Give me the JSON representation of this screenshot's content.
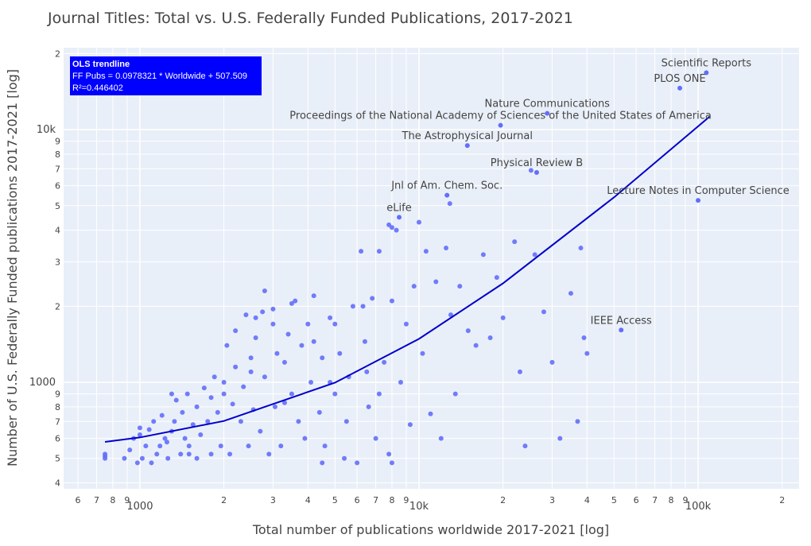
{
  "chart_data": {
    "type": "scatter",
    "title": "Journal Titles: Total vs. U.S. Federally Funded Publications, 2017-2021",
    "x_label": "Total number of publications worldwide 2017-2021 [log]",
    "y_label": "Number of U.S. Federally Funded publications 2017-2021 [log]",
    "log_x": true,
    "log_y": true,
    "grid": true,
    "color": "#636efa",
    "xlim": [
      533,
      230000
    ],
    "ylim": [
      379,
      21100
    ],
    "xticks": [
      {
        "value": 600,
        "label": "6"
      },
      {
        "value": 700,
        "label": "7"
      },
      {
        "value": 800,
        "label": "8"
      },
      {
        "value": 900,
        "label": "9"
      },
      1000,
      {
        "value": 2000,
        "label": "2"
      },
      {
        "value": 3000,
        "label": "3"
      },
      {
        "value": 4000,
        "label": "4"
      },
      {
        "value": 5000,
        "label": "5"
      },
      {
        "value": 6000,
        "label": "6"
      },
      {
        "value": 7000,
        "label": "7"
      },
      {
        "value": 8000,
        "label": "8"
      },
      {
        "value": 9000,
        "label": "9"
      },
      {
        "value": 10000,
        "label": "10k"
      },
      {
        "value": 20000,
        "label": "2"
      },
      {
        "value": 30000,
        "label": "3"
      },
      {
        "value": 40000,
        "label": "4"
      },
      {
        "value": 50000,
        "label": "5"
      },
      {
        "value": 60000,
        "label": "6"
      },
      {
        "value": 70000,
        "label": "7"
      },
      {
        "value": 80000,
        "label": "8"
      },
      {
        "value": 90000,
        "label": "9"
      },
      {
        "value": 100000,
        "label": "100k"
      },
      {
        "value": 200000,
        "label": "2"
      }
    ],
    "yticks": [
      {
        "value": 400,
        "label": "4"
      },
      {
        "value": 500,
        "label": "5"
      },
      {
        "value": 600,
        "label": "6"
      },
      {
        "value": 700,
        "label": "7"
      },
      {
        "value": 800,
        "label": "8"
      },
      {
        "value": 900,
        "label": "9"
      },
      1000,
      {
        "value": 2000,
        "label": "2"
      },
      {
        "value": 3000,
        "label": "3"
      },
      {
        "value": 4000,
        "label": "4"
      },
      {
        "value": 5000,
        "label": "5"
      },
      {
        "value": 6000,
        "label": "6"
      },
      {
        "value": 7000,
        "label": "7"
      },
      {
        "value": 8000,
        "label": "8"
      },
      {
        "value": 9000,
        "label": "9"
      },
      {
        "value": 10000,
        "label": "10k"
      },
      {
        "value": 20000,
        "label": "2"
      }
    ],
    "x": [
      750,
      750,
      880,
      920,
      950,
      980,
      1000,
      1020,
      1050,
      1080,
      1100,
      1120,
      1150,
      1180,
      1200,
      1230,
      1260,
      1300,
      1330,
      1350,
      1400,
      1420,
      1450,
      1480,
      1500,
      1550,
      1600,
      1650,
      1700,
      1750,
      1800,
      1850,
      1900,
      1950,
      2000,
      2050,
      2100,
      2150,
      2200,
      2300,
      2350,
      2400,
      2450,
      2500,
      2550,
      2600,
      2700,
      2750,
      2800,
      2900,
      3000,
      3050,
      3100,
      3200,
      3300,
      3400,
      3500,
      3600,
      3700,
      3800,
      3900,
      4000,
      4100,
      4200,
      4400,
      4500,
      4600,
      4800,
      5000,
      5200,
      5400,
      5600,
      5800,
      6000,
      6200,
      6400,
      6600,
      6800,
      7000,
      7200,
      7500,
      7800,
      8000,
      8300,
      8600,
      9000,
      9300,
      9600,
      10000,
      10300,
      10600,
      11000,
      11500,
      12000,
      12500,
      13000,
      13500,
      14000,
      15000,
      16000,
      17000,
      18000,
      19000,
      20000,
      22000,
      23000,
      24000,
      26000,
      28000,
      30000,
      32000,
      35000,
      37000,
      38000,
      39000,
      40000,
      1250,
      1600,
      2000,
      2500,
      3000,
      3500,
      4200,
      5000,
      6300,
      6500,
      7200,
      8000,
      2800,
      3300,
      1800,
      2200,
      4500,
      5500,
      750,
      1000,
      1300,
      1500,
      2600,
      4800,
      25200,
      12900,
      7800,
      8000
    ],
    "values": [
      510,
      500,
      500,
      540,
      600,
      480,
      620,
      500,
      560,
      650,
      480,
      700,
      520,
      560,
      740,
      600,
      500,
      640,
      700,
      850,
      520,
      760,
      600,
      900,
      520,
      680,
      800,
      620,
      950,
      700,
      520,
      1050,
      760,
      560,
      900,
      1400,
      520,
      820,
      1150,
      700,
      960,
      1850,
      560,
      1100,
      780,
      1500,
      640,
      1900,
      1050,
      520,
      1700,
      800,
      1300,
      560,
      1200,
      1550,
      900,
      2100,
      700,
      1400,
      600,
      1700,
      1000,
      2200,
      760,
      1250,
      560,
      1800,
      900,
      1300,
      500,
      1050,
      2000,
      480,
      3300,
      1450,
      800,
      2150,
      600,
      3300,
      1200,
      520,
      2100,
      4000,
      1000,
      1700,
      680,
      2400,
      4300,
      1300,
      3300,
      750,
      2500,
      600,
      3400,
      1850,
      900,
      2400,
      1600,
      1400,
      3200,
      1500,
      2600,
      1800,
      3600,
      1100,
      560,
      3200,
      1900,
      1200,
      600,
      2250,
      700,
      3400,
      1500,
      1300,
      580,
      500,
      1000,
      1250,
      1950,
      2050,
      1450,
      1700,
      2000,
      1100,
      900,
      480,
      2300,
      830,
      870,
      1600,
      480,
      700,
      520,
      660,
      900,
      560,
      1800,
      1000,
      6900,
      5100,
      4200,
      4100
    ],
    "labeled_points": {
      "labels": [
        "Scientific Reports",
        "PLOS ONE",
        "Nature Communications",
        "Proceedings of the National Academy of Sciences of the United States of America",
        "The Astrophysical Journal",
        "Physical Review B",
        "Lecture Notes in Computer Science",
        "Jnl of Am. Chem. Soc.",
        "eLife",
        "IEEE Access"
      ],
      "x": [
        107000,
        86000,
        28800,
        19600,
        14900,
        26400,
        100000,
        12600,
        8490,
        53000
      ],
      "values": [
        16800,
        14600,
        11600,
        10400,
        8650,
        6770,
        5250,
        5500,
        4500,
        1610
      ]
    },
    "trendline": {
      "color": "#0000cc",
      "x": [
        750,
        1000,
        2000,
        5000,
        10000,
        20000,
        50000,
        110000
      ],
      "values": [
        581,
        605,
        703,
        997,
        1486,
        2464,
        5399,
        11269
      ]
    },
    "trendline_annotation": [
      "OLS trendline",
      "FF Pubs = 0.0978321 * Worldwide + 507.509",
      "R²=0.446402"
    ]
  }
}
